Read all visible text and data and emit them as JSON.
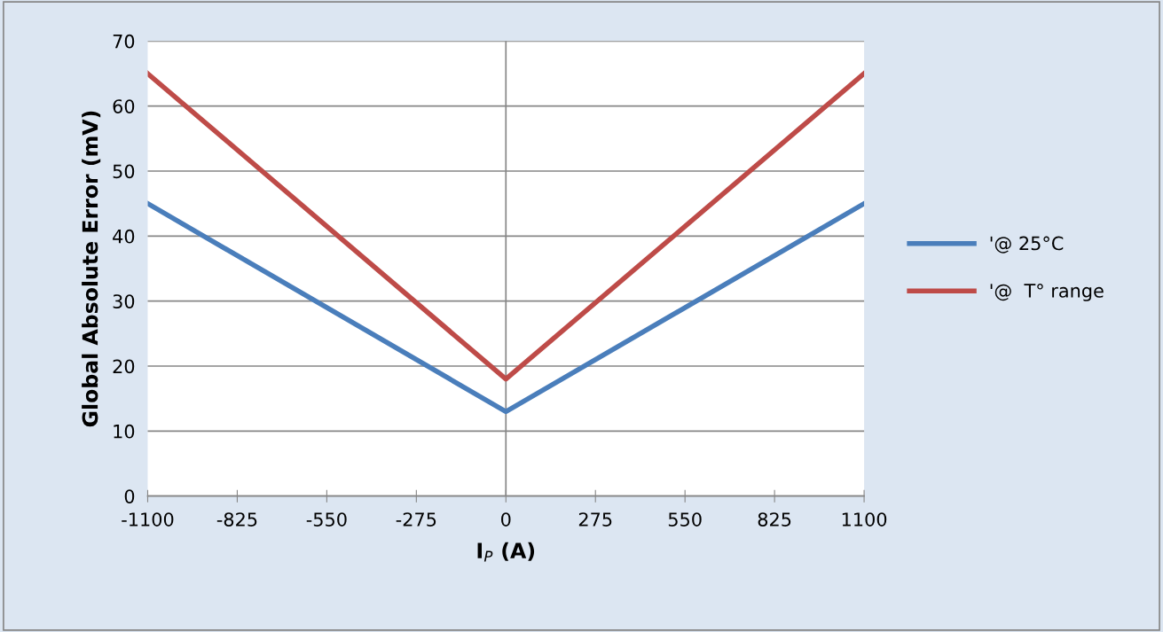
{
  "chart_data": {
    "type": "line",
    "xlabel": "I$_{P}$ (A)",
    "ylabel": "Global Absolute Error (mV)",
    "x": [
      -1100,
      0,
      1100
    ],
    "series": [
      {
        "name": "'@ 25°C",
        "color": "#4a7ebb",
        "values": [
          45,
          13,
          45
        ]
      },
      {
        "name": "'@  T° range",
        "color": "#be4b48",
        "values": [
          65,
          18,
          65
        ]
      }
    ],
    "xlim": [
      -1100,
      1100
    ],
    "xticks": [
      -1100,
      -825,
      -550,
      -275,
      0,
      275,
      550,
      825,
      1100
    ],
    "ylim": [
      0,
      70
    ],
    "yticks": [
      0,
      10,
      20,
      30,
      40,
      50,
      60,
      70
    ],
    "grid": "y",
    "legend": "right",
    "marker": "none",
    "line_style": "solid",
    "ref_lines": [
      {
        "axis": "x",
        "value": 0,
        "color": "#868686"
      }
    ]
  }
}
